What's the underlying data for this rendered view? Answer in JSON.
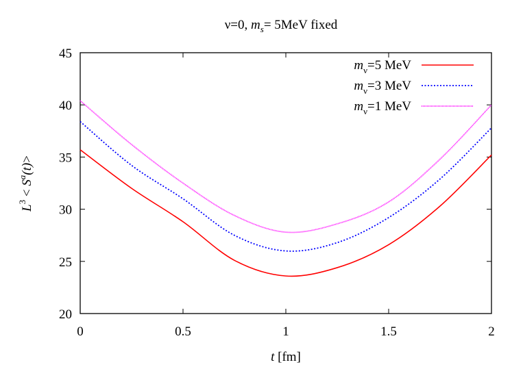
{
  "chart_data": {
    "type": "line",
    "title": "ν=0,  m_s= 5MeV fixed",
    "title_parts": {
      "prefix": "ν=0,  ",
      "m": "m",
      "sub": "s",
      "suffix": "= 5MeV fixed"
    },
    "xlabel": "t [fm]",
    "xlabel_parts": {
      "var": "t",
      "unit": " [fm]"
    },
    "ylabel": "L^3 < S^a(t)>",
    "ylabel_parts": {
      "L": "L",
      "exp3": "3",
      "lt": " < ",
      "S": "S",
      "expa": "a",
      "arg": "(t)",
      "gt": ">"
    },
    "xlim": [
      0,
      2
    ],
    "ylim": [
      20,
      45
    ],
    "xticks": [
      "0",
      "0.5",
      "1",
      "1.5",
      "2"
    ],
    "yticks": [
      "20",
      "25",
      "30",
      "35",
      "40",
      "45"
    ],
    "grid": false,
    "legend_position": "top-right",
    "x": [
      0,
      0.25,
      0.5,
      0.75,
      1,
      1.25,
      1.5,
      1.75,
      2
    ],
    "series": [
      {
        "name": "m_ν=5 MeV",
        "label_value": "=5 MeV",
        "color": "#ff0000",
        "style": "solid",
        "values": [
          35.7,
          32.0,
          28.8,
          25.1,
          23.6,
          24.4,
          26.6,
          30.3,
          35.2
        ]
      },
      {
        "name": "m_ν=3 MeV",
        "label_value": "=3 MeV",
        "color": "#0000ff",
        "style": "dotted",
        "values": [
          38.4,
          34.2,
          31.0,
          27.5,
          26.0,
          26.8,
          29.2,
          32.9,
          37.8
        ]
      },
      {
        "name": "m_ν=1 MeV",
        "label_value": "=1 MeV",
        "color": "#ff00ff",
        "style": "fine-dotted",
        "values": [
          40.4,
          36.2,
          32.5,
          29.4,
          27.8,
          28.6,
          30.7,
          34.8,
          40.0
        ]
      }
    ],
    "legend_symbol": {
      "m": "m",
      "sub": "ν"
    }
  }
}
